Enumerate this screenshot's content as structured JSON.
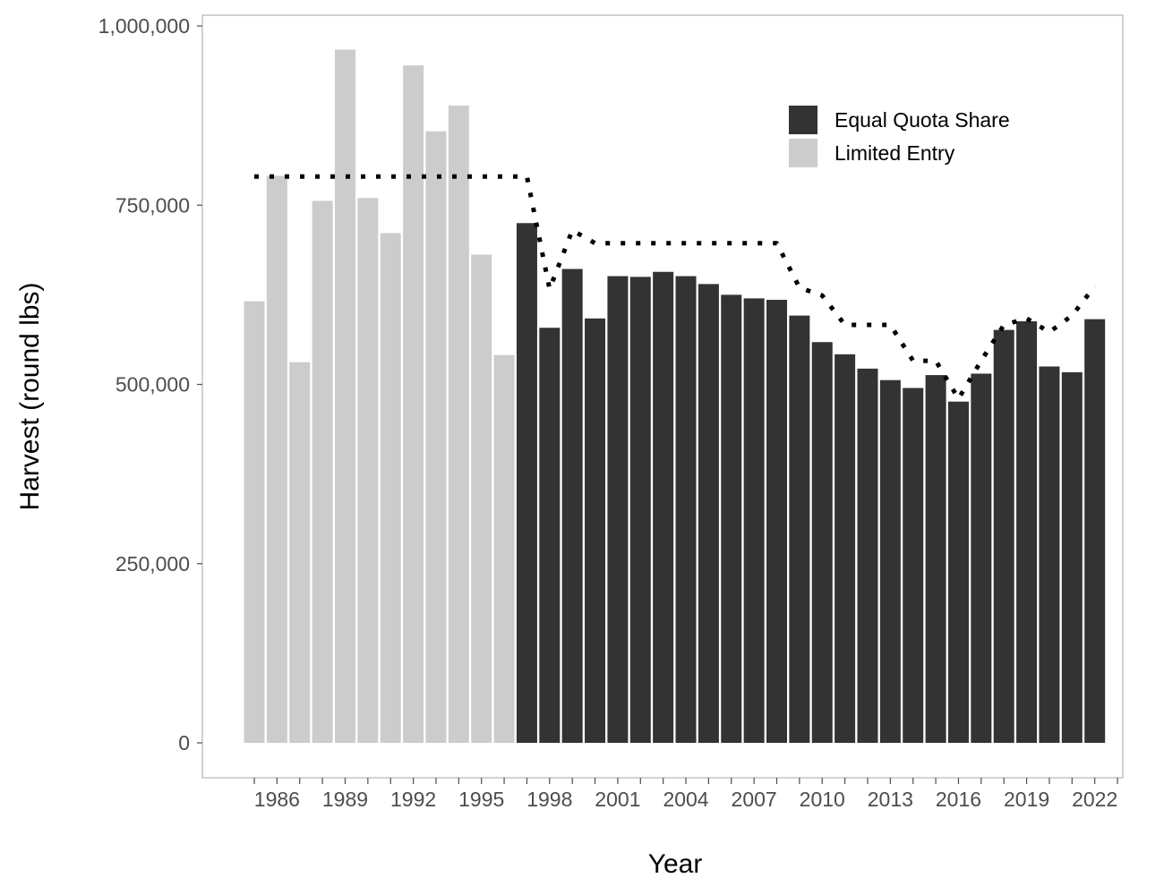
{
  "chart_data": {
    "type": "bar",
    "title": "",
    "xlabel": "Year",
    "ylabel": "Harvest (round lbs)",
    "ylim": [
      0,
      1000000
    ],
    "yticks": [
      0,
      250000,
      500000,
      750000,
      1000000
    ],
    "ytick_labels": [
      "0",
      "250,000",
      "500,000",
      "750,000",
      "1,000,000"
    ],
    "xtick_labels": [
      "1986",
      "1989",
      "1992",
      "1995",
      "1998",
      "2001",
      "2004",
      "2007",
      "2010",
      "2013",
      "2016",
      "2019",
      "2022"
    ],
    "categories": [
      1985,
      1986,
      1987,
      1988,
      1989,
      1990,
      1991,
      1992,
      1993,
      1994,
      1995,
      1996,
      1997,
      1998,
      1999,
      2000,
      2001,
      2002,
      2003,
      2004,
      2005,
      2006,
      2007,
      2008,
      2009,
      2010,
      2011,
      2012,
      2013,
      2014,
      2015,
      2016,
      2017,
      2018,
      2019,
      2020,
      2021,
      2022,
      2023
    ],
    "series": [
      {
        "name": "Limited Entry",
        "color": "#cccccc",
        "values": [
          616000,
          791000,
          531000,
          756000,
          967000,
          760000,
          711000,
          945000,
          853000,
          889000,
          681000,
          541000,
          null,
          null,
          null,
          null,
          null,
          null,
          null,
          null,
          null,
          null,
          null,
          null,
          null,
          null,
          null,
          null,
          null,
          null,
          null,
          null,
          null,
          null,
          null,
          null,
          null,
          null,
          null
        ]
      },
      {
        "name": "Equal Quota Share",
        "color": "#333333",
        "values": [
          null,
          null,
          null,
          null,
          null,
          null,
          null,
          null,
          null,
          null,
          null,
          null,
          725000,
          579000,
          661000,
          592000,
          651000,
          650000,
          657000,
          651000,
          640000,
          625000,
          620000,
          618000,
          596000,
          559000,
          542000,
          522000,
          506000,
          495000,
          513000,
          476000,
          515000,
          576000,
          588000,
          525000,
          517000,
          591000,
          null
        ]
      }
    ],
    "quota_line": {
      "style": "dotted",
      "color": "#000000",
      "x": [
        1985,
        1986,
        1987,
        1988,
        1989,
        1990,
        1991,
        1992,
        1993,
        1994,
        1995,
        1996,
        1997,
        1998,
        1999,
        2000,
        2001,
        2002,
        2003,
        2004,
        2005,
        2006,
        2007,
        2008,
        2009,
        2010,
        2011,
        2012,
        2013,
        2014,
        2015,
        2016,
        2017,
        2018,
        2019,
        2020,
        2021,
        2022
      ],
      "values": [
        790000,
        790000,
        790000,
        790000,
        790000,
        790000,
        790000,
        790000,
        790000,
        790000,
        790000,
        790000,
        790000,
        633000,
        715000,
        697000,
        697000,
        697000,
        697000,
        697000,
        697000,
        697000,
        697000,
        697000,
        635000,
        624000,
        583000,
        583000,
        583000,
        533000,
        533000,
        480000,
        533000,
        583000,
        592000,
        573000,
        596000,
        637000
      ]
    },
    "legend": {
      "placement": "top-right",
      "entries": [
        {
          "label": "Equal Quota Share",
          "color": "#333333"
        },
        {
          "label": "Limited Entry",
          "color": "#cccccc"
        }
      ]
    },
    "grid": false
  }
}
